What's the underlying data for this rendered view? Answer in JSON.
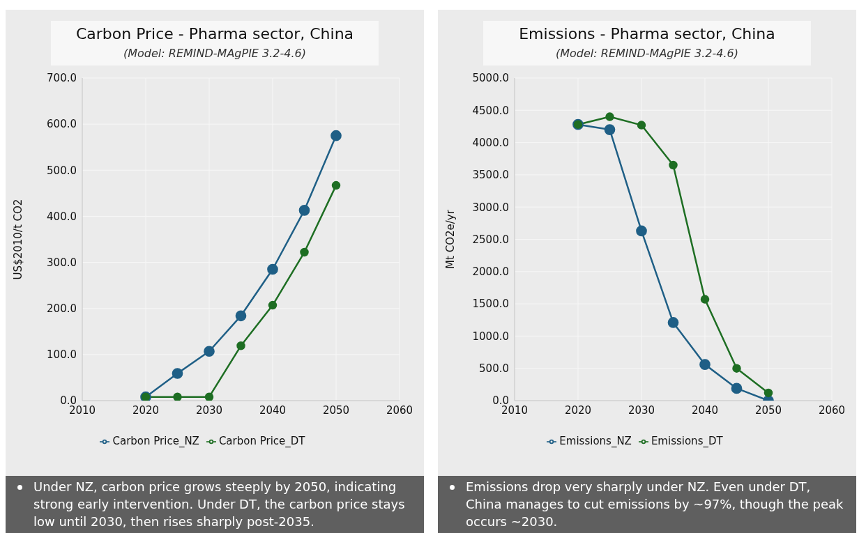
{
  "chart_data": [
    {
      "type": "line",
      "title": "Carbon Price - Pharma sector, China",
      "subtitle": "(Model: REMIND-MAgPIE 3.2-4.6)",
      "ylabel": "US$2010/t CO2",
      "x": [
        2020,
        2025,
        2030,
        2035,
        2040,
        2045,
        2050
      ],
      "series": [
        {
          "name": "Carbon Price_NZ",
          "color": "#1f5f86",
          "values": [
            8,
            59,
            107,
            184,
            285,
            413,
            575
          ]
        },
        {
          "name": "Carbon Price_DT",
          "color": "#1e6e23",
          "values": [
            8,
            8,
            8,
            119,
            207,
            322,
            467
          ]
        }
      ],
      "xlim": [
        2010,
        2060
      ],
      "xticks": [
        2010,
        2020,
        2030,
        2040,
        2050,
        2060
      ],
      "ylim": [
        0,
        700
      ],
      "yticks": [
        {
          "value": 0,
          "label": "0.0"
        },
        {
          "value": 100,
          "label": "100.0"
        },
        {
          "value": 200,
          "label": "200.0"
        },
        {
          "value": 300,
          "label": "300.0"
        },
        {
          "value": 400,
          "label": "400.0"
        },
        {
          "value": 500,
          "label": "500.0"
        },
        {
          "value": 600,
          "label": "600.0"
        },
        {
          "value": 700,
          "label": "700.0"
        }
      ],
      "grid": true,
      "legend": "bottom",
      "marker": "circle",
      "line_style": "solid",
      "annotations": [
        "Under NZ, carbon price grows steeply by 2050, indicating strong early intervention. Under DT, the carbon price stays low until 2030, then rises sharply post-2035."
      ]
    },
    {
      "type": "line",
      "title": "Emissions - Pharma sector, China",
      "subtitle": "(Model: REMIND-MAgPIE 3.2-4.6)",
      "ylabel": "Mt CO2e/yr",
      "x": [
        2020,
        2025,
        2030,
        2035,
        2040,
        2045,
        2050
      ],
      "series": [
        {
          "name": "Emissions_NZ",
          "color": "#1f5f86",
          "values": [
            4280,
            4200,
            2630,
            1210,
            560,
            190,
            0
          ]
        },
        {
          "name": "Emissions_DT",
          "color": "#1e6e23",
          "values": [
            4280,
            4400,
            4270,
            3650,
            1570,
            500,
            120
          ]
        }
      ],
      "xlim": [
        2010,
        2060
      ],
      "xticks": [
        2010,
        2020,
        2030,
        2040,
        2050,
        2060
      ],
      "ylim": [
        0,
        5000
      ],
      "yticks": [
        {
          "value": 0,
          "label": "0.0"
        },
        {
          "value": 500,
          "label": "500.0"
        },
        {
          "value": 1000,
          "label": "1000.0"
        },
        {
          "value": 1500,
          "label": "1500.0"
        },
        {
          "value": 2000,
          "label": "2000.0"
        },
        {
          "value": 2500,
          "label": "2500.0"
        },
        {
          "value": 3000,
          "label": "3000.0"
        },
        {
          "value": 3500,
          "label": "3500.0"
        },
        {
          "value": 4000,
          "label": "4000.0"
        },
        {
          "value": 4500,
          "label": "4500.0"
        },
        {
          "value": 5000,
          "label": "5000.0"
        }
      ],
      "grid": true,
      "legend": "bottom",
      "marker": "circle",
      "line_style": "solid",
      "annotations": [
        "Emissions drop very sharply under NZ. Even under DT, China manages to cut emissions by ~97%, though the peak occurs ~2030."
      ]
    }
  ]
}
